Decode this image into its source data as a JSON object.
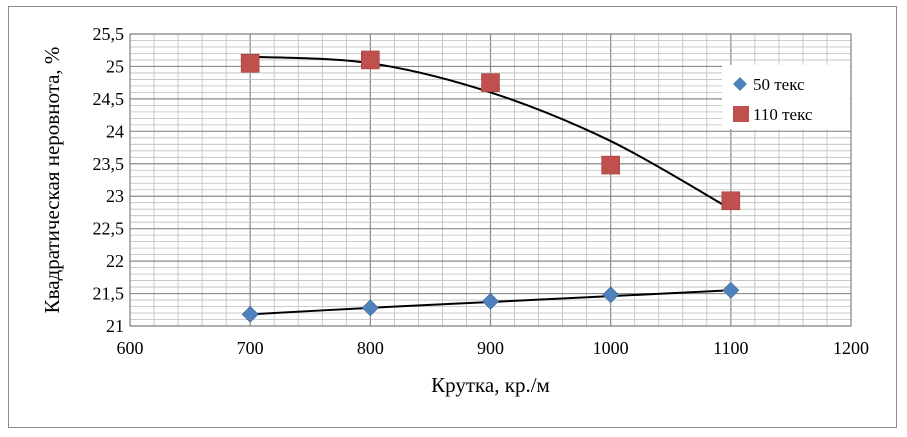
{
  "chart_data": {
    "type": "scatter",
    "title": "",
    "xlabel": "Крутка, кр./м",
    "ylabel": "Квадратическая неровнота, %",
    "xlim": [
      600,
      1200
    ],
    "ylim": [
      21,
      25.5
    ],
    "x_ticks": [
      600,
      700,
      800,
      900,
      1000,
      1100,
      1200
    ],
    "x_tick_labels": [
      "600",
      "700",
      "800",
      "900",
      "1000",
      "1100",
      "1200"
    ],
    "y_ticks": [
      21,
      21.5,
      22,
      22.5,
      23,
      23.5,
      24,
      24.5,
      25,
      25.5
    ],
    "y_tick_labels": [
      "21",
      "21,5",
      "22",
      "22,5",
      "23",
      "23,5",
      "24",
      "24,5",
      "25",
      "25,5"
    ],
    "grid": "on",
    "legend_position": "right",
    "series": [
      {
        "name": "50 текс",
        "marker": "diamond",
        "color": "#4f81bd",
        "x": [
          700,
          800,
          900,
          1000,
          1100
        ],
        "values": [
          21.18,
          21.28,
          21.38,
          21.48,
          21.55
        ],
        "trend": [
          21.18,
          21.28,
          21.37,
          21.46,
          21.55
        ]
      },
      {
        "name": "110 текс",
        "marker": "square",
        "color": "#c0504d",
        "x": [
          700,
          800,
          900,
          1000,
          1100
        ],
        "values": [
          25.05,
          25.1,
          24.75,
          23.48,
          22.93
        ],
        "trend": [
          25.15,
          25.05,
          24.6,
          23.85,
          22.8
        ]
      }
    ],
    "trendline_color": "#000000"
  }
}
